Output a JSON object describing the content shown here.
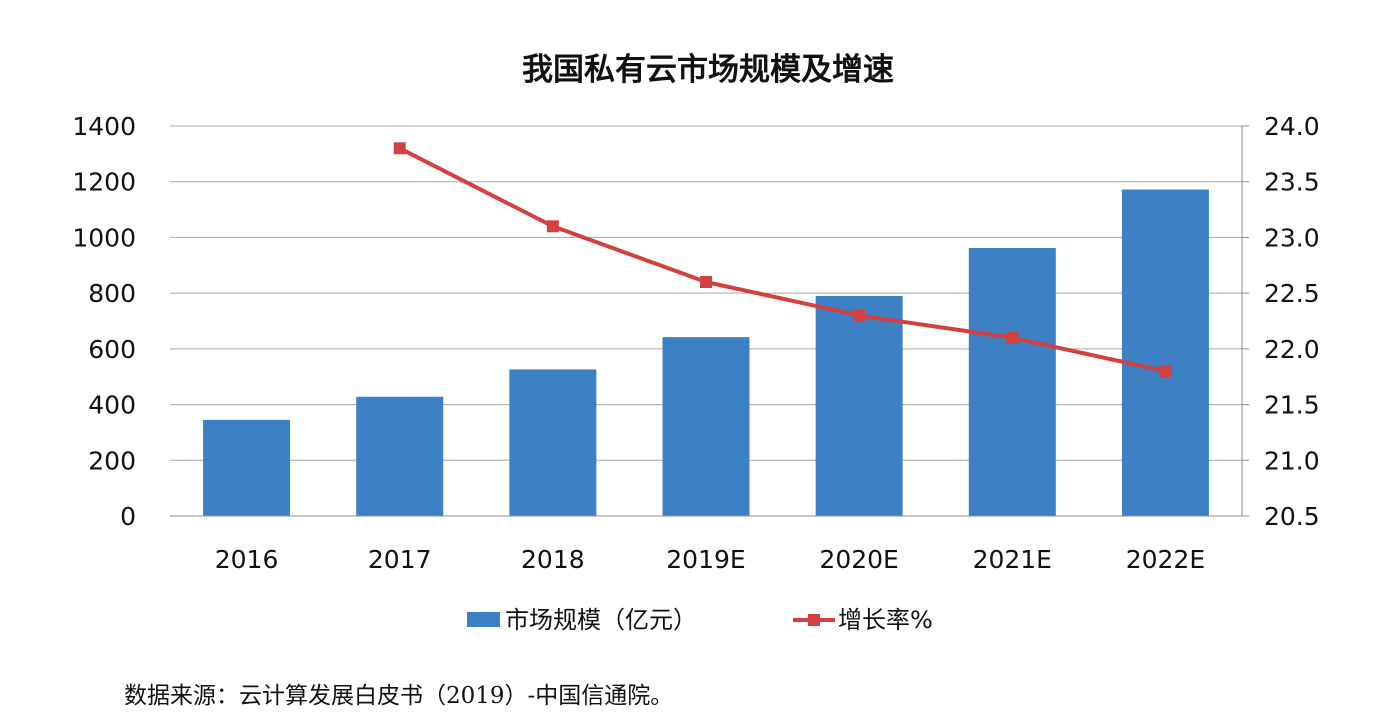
{
  "chart_data": {
    "type": "bar",
    "title": "我国私有云市场规模及增速",
    "categories": [
      "2016",
      "2017",
      "2018",
      "2019E",
      "2020E",
      "2021E",
      "2022E"
    ],
    "series": [
      {
        "name": "市场规模（亿元）",
        "type": "bar",
        "axis": "left",
        "color": "#3d80c3",
        "values": [
          345,
          428,
          526,
          642,
          790,
          962,
          1172
        ]
      },
      {
        "name": "增长率%",
        "type": "line",
        "axis": "right",
        "color": "#d34040",
        "values": [
          null,
          23.8,
          23.1,
          22.6,
          22.3,
          22.1,
          21.8
        ]
      }
    ],
    "y_left": {
      "min": 0,
      "max": 1400,
      "ticks": [
        "0",
        "200",
        "400",
        "600",
        "800",
        "1000",
        "1200",
        "1400"
      ]
    },
    "y_right": {
      "min": 20.5,
      "max": 24.0,
      "ticks": [
        "20.5",
        "21.0",
        "21.5",
        "22.0",
        "22.5",
        "23.0",
        "23.5",
        "24.0"
      ]
    },
    "grid": true,
    "legend_position": "bottom"
  },
  "footer": {
    "source": "数据来源：云计算发展白皮书（2019）-中国信通院。"
  }
}
